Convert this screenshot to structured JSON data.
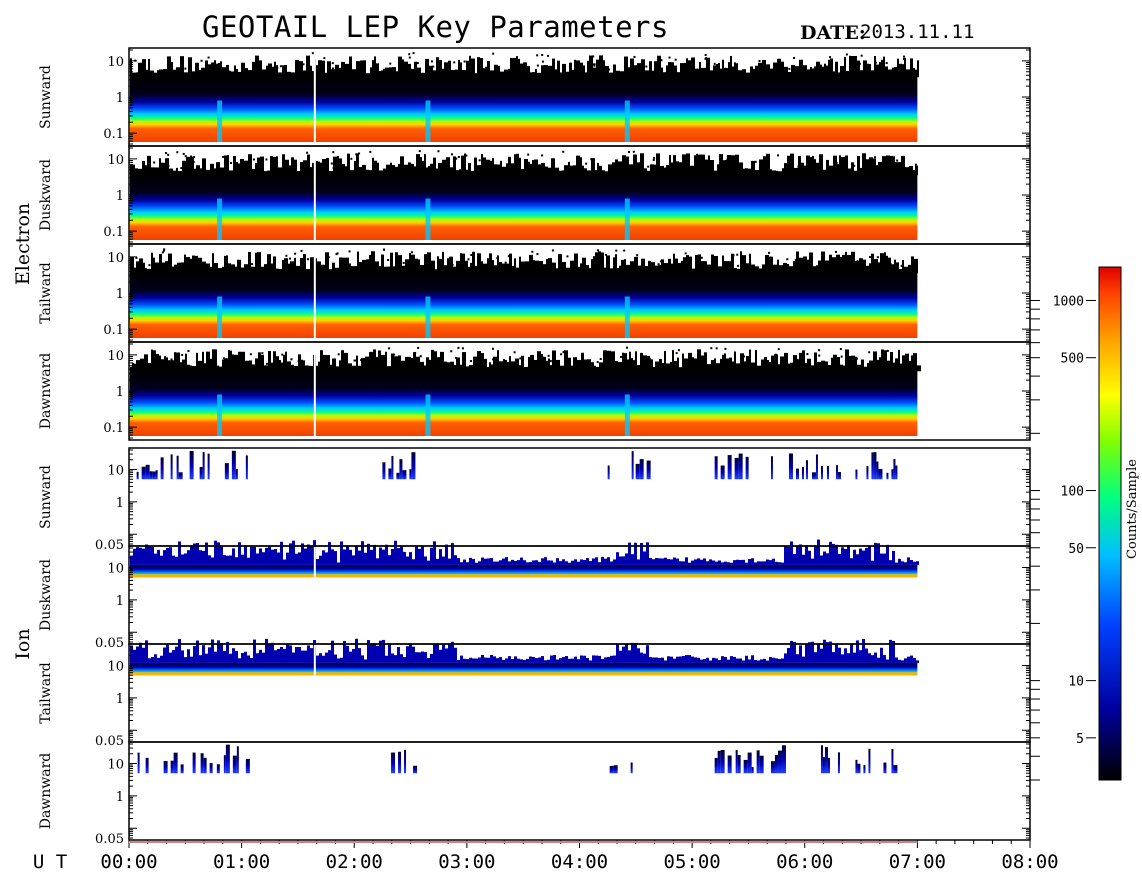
{
  "header": {
    "title": "GEOTAIL LEP Key Parameters",
    "date_label": "DATE:",
    "date_value": "2013.11.11"
  },
  "chart_data": {
    "type": "heatmap",
    "xaxis": {
      "prefix": "U T",
      "ticks": [
        "00:00",
        "01:00",
        "02:00",
        "03:00",
        "04:00",
        "05:00",
        "06:00",
        "07:00",
        "08:00"
      ],
      "range_hours": [
        0,
        8
      ],
      "data_end_hours": 7.0,
      "data_gap_hours": 1.65
    },
    "groups": [
      {
        "label": "Electron",
        "y_scale": "log",
        "panels": [
          {
            "label": "Sunward",
            "y_ticks": [
              "10",
              "1",
              "0.1"
            ],
            "ylim": [
              0.05,
              20
            ]
          },
          {
            "label": "Duskward",
            "y_ticks": [
              "10",
              "1",
              "0.1"
            ],
            "ylim": [
              0.05,
              20
            ]
          },
          {
            "label": "Tailward",
            "y_ticks": [
              "10",
              "1",
              "0.1"
            ],
            "ylim": [
              0.05,
              20
            ]
          },
          {
            "label": "Dawnward",
            "y_ticks": [
              "10",
              "1",
              "0.1"
            ],
            "ylim": [
              0.05,
              20
            ]
          }
        ]
      },
      {
        "label": "Ion",
        "y_scale": "log",
        "panels": [
          {
            "label": "Sunward",
            "y_ticks": [
              "10",
              "1",
              "0.05"
            ],
            "ylim": [
              0.05,
              40
            ]
          },
          {
            "label": "Duskward",
            "y_ticks": [
              "10",
              "1",
              "0.05"
            ],
            "ylim": [
              0.05,
              40
            ]
          },
          {
            "label": "Tailward",
            "y_ticks": [
              "10",
              "1",
              "0.05"
            ],
            "ylim": [
              0.05,
              40
            ]
          },
          {
            "label": "Dawnward",
            "y_ticks": [
              "10",
              "1",
              "0.05"
            ],
            "ylim": [
              0.05,
              40
            ]
          }
        ]
      }
    ],
    "colorbar": {
      "title": "Counts/Sample",
      "scale": "log",
      "range": [
        3,
        1500
      ],
      "ticks": [
        "1000",
        "500",
        "100",
        "50",
        "10",
        "5"
      ],
      "tick_values": [
        1000,
        500,
        100,
        50,
        10,
        5
      ],
      "colors": [
        "#000000",
        "#0000a0",
        "#0040ff",
        "#00c0ff",
        "#00ff80",
        "#80ff00",
        "#ffff00",
        "#ffa000",
        "#ff4000",
        "#e00000"
      ]
    },
    "ion_activity_windows_hours": {
      "sunward": [
        [
          0.05,
          0.72
        ],
        [
          0.78,
          1.05
        ],
        [
          2.25,
          2.55
        ],
        [
          4.25,
          4.6
        ],
        [
          5.2,
          5.5
        ],
        [
          5.7,
          6.3
        ],
        [
          6.45,
          6.85
        ]
      ],
      "dawnward": [
        [
          0.05,
          0.72
        ],
        [
          0.78,
          1.05
        ],
        [
          2.3,
          2.6
        ],
        [
          4.25,
          4.6
        ],
        [
          5.2,
          5.6
        ],
        [
          5.7,
          6.3
        ],
        [
          6.45,
          6.85
        ]
      ]
    }
  }
}
